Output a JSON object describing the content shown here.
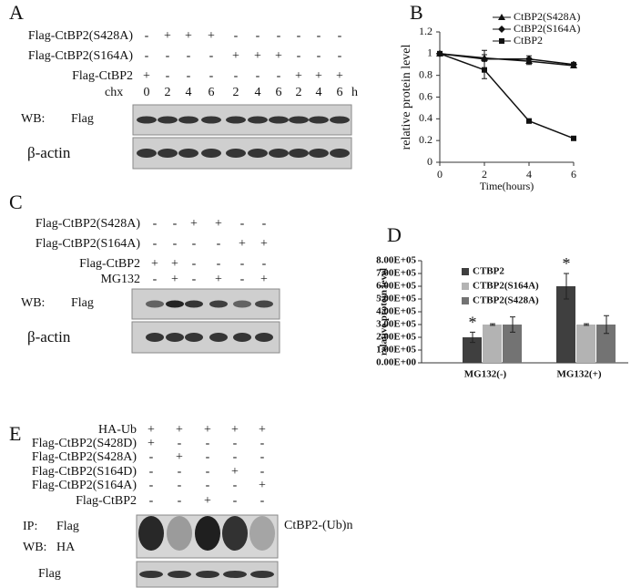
{
  "panels": {
    "A": {
      "label": "A",
      "rows": [
        {
          "name": "Flag-CtBP2(S428A)",
          "signs": [
            "-",
            "+",
            "+",
            "+",
            "-",
            "-",
            "-",
            "-",
            "-",
            "-"
          ]
        },
        {
          "name": "Flag-CtBP2(S164A)",
          "signs": [
            "-",
            "-",
            "-",
            "-",
            "+",
            "+",
            "+",
            "-",
            "-",
            "-"
          ]
        },
        {
          "name": "Flag-CtBP2",
          "signs": [
            "+",
            "-",
            "-",
            "-",
            "-",
            "-",
            "-",
            "+",
            "+",
            "+"
          ]
        }
      ],
      "chx": {
        "name": "chx",
        "values": [
          0,
          2,
          4,
          6,
          2,
          4,
          6,
          2,
          4,
          6
        ],
        "unit": "h"
      },
      "blots": [
        {
          "label": "WB:",
          "sublabel": "Flag"
        },
        {
          "label": "β-actin"
        }
      ]
    },
    "B": {
      "label": "B"
    },
    "C": {
      "label": "C",
      "rows": [
        {
          "name": "Flag-CtBP2(S428A)",
          "signs": [
            "-",
            "-",
            "+",
            "+",
            "-",
            "-"
          ]
        },
        {
          "name": "Flag-CtBP2(S164A)",
          "signs": [
            "-",
            "-",
            "-",
            "-",
            "+",
            "+"
          ]
        },
        {
          "name": "Flag-CtBP2",
          "signs": [
            "+",
            "+",
            "-",
            "-",
            "-",
            "-"
          ]
        },
        {
          "name": "MG132",
          "signs": [
            "-",
            "+",
            "-",
            "+",
            "-",
            "+"
          ]
        }
      ],
      "blots": [
        {
          "label": "WB:",
          "sublabel": "Flag"
        },
        {
          "label": "β-actin"
        }
      ]
    },
    "D": {
      "label": "D"
    },
    "E": {
      "label": "E",
      "rows": [
        {
          "name": "HA-Ub",
          "signs": [
            "+",
            "+",
            "+",
            "+",
            "+"
          ]
        },
        {
          "name": "Flag-CtBP2(S428D)",
          "signs": [
            "+",
            "-",
            "-",
            "-",
            "-"
          ]
        },
        {
          "name": "Flag-CtBP2(S428A)",
          "signs": [
            "-",
            "+",
            "-",
            "-",
            "-"
          ]
        },
        {
          "name": "Flag-CtBP2(S164D)",
          "signs": [
            "-",
            "-",
            "-",
            "+",
            "-"
          ]
        },
        {
          "name": "Flag-CtBP2(S164A)",
          "signs": [
            "-",
            "-",
            "-",
            "-",
            "+"
          ]
        },
        {
          "name": "Flag-CtBP2",
          "signs": [
            "-",
            "-",
            "+",
            "-",
            "-"
          ]
        }
      ],
      "blots": [
        {
          "label": "IP:",
          "sublabel": "Flag",
          "label2": "WB:",
          "sublabel2": "HA",
          "side": "CtBP2-(Ub)n"
        },
        {
          "label": "Flag"
        }
      ]
    }
  },
  "chart_data": [
    {
      "type": "line",
      "xlabel": "Time(hours)",
      "ylabel": "relative protein level",
      "x": [
        0,
        2,
        4,
        6
      ],
      "xlim": [
        0,
        6
      ],
      "xticks": [
        0,
        2,
        4,
        6
      ],
      "ylim": [
        0,
        1.2
      ],
      "yticks": [
        0,
        0.2,
        0.4,
        0.6,
        0.8,
        1,
        1.2
      ],
      "series": [
        {
          "name": "CtBP2(S428A)",
          "color": "#111111",
          "marker": "triangle",
          "values": [
            1,
            0.96,
            0.93,
            0.89
          ],
          "errors": [
            0.01,
            0.03,
            0.03,
            0.02
          ]
        },
        {
          "name": "CtBP2(S164A)",
          "color": "#111111",
          "marker": "diamond",
          "values": [
            1,
            0.95,
            0.95,
            0.9
          ],
          "errors": [
            0.01,
            0.08,
            0.03,
            0.02
          ]
        },
        {
          "name": "CtBP2",
          "color": "#111111",
          "marker": "square",
          "values": [
            1,
            0.85,
            0.38,
            0.22
          ],
          "errors": [
            0.01,
            0.08,
            0.02,
            0.01
          ]
        }
      ]
    },
    {
      "type": "bar",
      "ylabel": "relative protein level",
      "categories": [
        "MG132(-)",
        "MG132(+)"
      ],
      "ylim": [
        0,
        800000
      ],
      "yticks": [
        {
          "value": 0,
          "label": "0.00E+00"
        },
        {
          "value": 100000,
          "label": "1.00E+05"
        },
        {
          "value": 200000,
          "label": "2.00E+05"
        },
        {
          "value": 300000,
          "label": "3.00E+05"
        },
        {
          "value": 400000,
          "label": "4.00E+05"
        },
        {
          "value": 500000,
          "label": "5.00E+05"
        },
        {
          "value": 600000,
          "label": "6.00E+05"
        },
        {
          "value": 700000,
          "label": "7.00E+05"
        },
        {
          "value": 800000,
          "label": "8.00E+05"
        }
      ],
      "series": [
        {
          "name": "CTBP2",
          "color": "#3f3f3f",
          "values": [
            200000,
            600000
          ],
          "errors": [
            40000,
            100000
          ]
        },
        {
          "name": "CTBP2(S164A)",
          "color": "#b3b3b3",
          "values": [
            300000,
            300000
          ],
          "errors": [
            6000,
            6000
          ]
        },
        {
          "name": "CTBP2(S428A)",
          "color": "#737373",
          "values": [
            300000,
            300000
          ],
          "errors": [
            60000,
            70000
          ]
        }
      ],
      "annotations": [
        {
          "text": "*",
          "series": 0,
          "category": 0
        },
        {
          "text": "*",
          "series": 0,
          "category": 1
        }
      ]
    }
  ]
}
